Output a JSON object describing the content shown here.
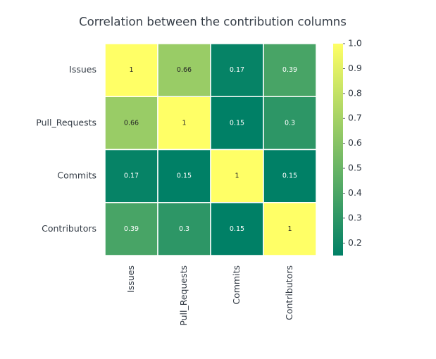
{
  "chart_data": {
    "type": "heatmap",
    "title": "Correlation between the contribution columns",
    "x_categories": [
      "Issues",
      "Pull_Requests",
      "Commits",
      "Contributors"
    ],
    "y_categories": [
      "Issues",
      "Pull_Requests",
      "Commits",
      "Contributors"
    ],
    "values": [
      [
        1,
        0.66,
        0.17,
        0.39
      ],
      [
        0.66,
        1,
        0.15,
        0.3
      ],
      [
        0.17,
        0.15,
        1,
        0.15
      ],
      [
        0.39,
        0.3,
        0.15,
        1
      ]
    ],
    "colormap": "summer",
    "colorbar_lim": [
      0.15,
      1
    ],
    "colorbar_ticks": [
      0.2,
      0.3,
      0.4,
      0.5,
      0.6,
      0.7,
      0.8,
      0.9,
      {
        "value": 1,
        "label": "1.0"
      }
    ]
  }
}
